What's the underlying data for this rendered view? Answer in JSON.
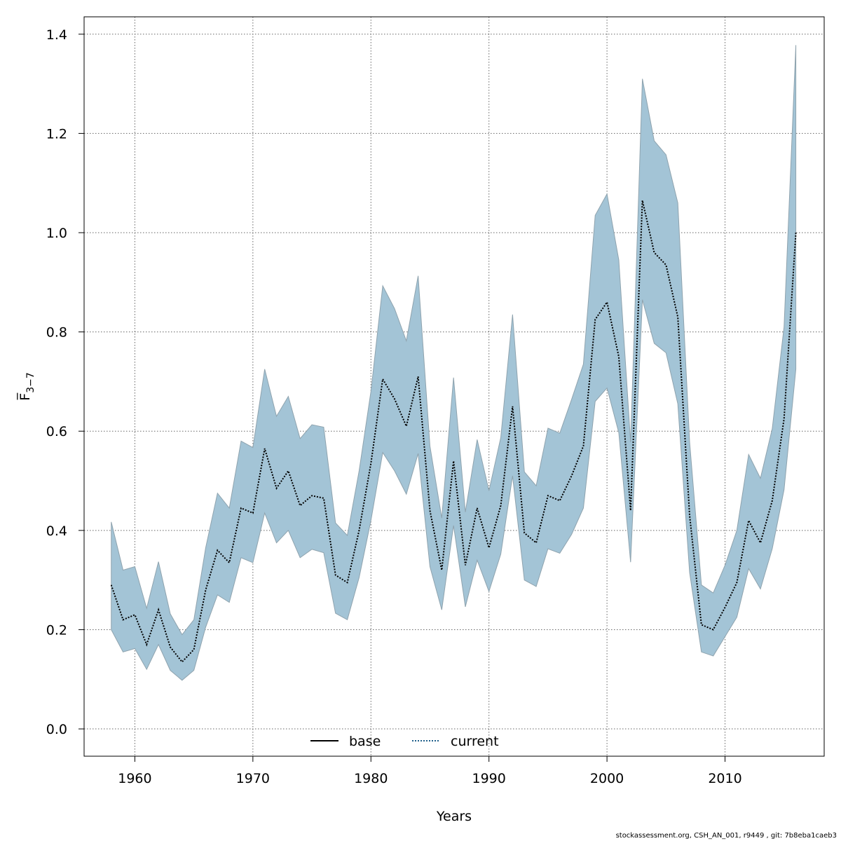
{
  "chart_data": {
    "type": "line",
    "xlabel": "Years",
    "ylabel": "F̅",
    "ylabel_subscript": "3−7",
    "xlim": [
      1955.7,
      2018.4
    ],
    "ylim": [
      -0.055,
      1.435
    ],
    "xticks": [
      1960,
      1970,
      1980,
      1990,
      2000,
      2010
    ],
    "yticks": [
      0.0,
      0.2,
      0.4,
      0.6,
      0.8,
      1.0,
      1.2,
      1.4
    ],
    "ytick_labels": [
      "0.0",
      "0.2",
      "0.4",
      "0.6",
      "0.8",
      "1.0",
      "1.2",
      "1.4"
    ],
    "grid": true,
    "legend_position": "bottom-center",
    "colors": {
      "band": "#a3c4d6",
      "band_edge": "#8fa3ae",
      "line": "#000000",
      "current": "#1f5f8b"
    },
    "x": [
      1958,
      1959,
      1960,
      1961,
      1962,
      1963,
      1964,
      1965,
      1966,
      1967,
      1968,
      1969,
      1970,
      1971,
      1972,
      1973,
      1974,
      1975,
      1976,
      1977,
      1978,
      1979,
      1980,
      1981,
      1982,
      1983,
      1984,
      1985,
      1986,
      1987,
      1988,
      1989,
      1990,
      1991,
      1992,
      1993,
      1994,
      1995,
      1996,
      1997,
      1998,
      1999,
      2000,
      2001,
      2002,
      2003,
      2004,
      2005,
      2006,
      2007,
      2008,
      2009,
      2010,
      2011,
      2012,
      2013,
      2014,
      2015,
      2016
    ],
    "series": [
      {
        "name": "base",
        "style": "solid",
        "values": [
          0.29,
          0.22,
          0.23,
          0.17,
          0.24,
          0.165,
          0.135,
          0.16,
          0.28,
          0.36,
          0.335,
          0.445,
          0.435,
          0.565,
          0.485,
          0.52,
          0.45,
          0.47,
          0.465,
          0.31,
          0.295,
          0.4,
          0.535,
          0.705,
          0.665,
          0.61,
          0.71,
          0.44,
          0.32,
          0.54,
          0.33,
          0.445,
          0.365,
          0.45,
          0.65,
          0.395,
          0.375,
          0.47,
          0.46,
          0.51,
          0.57,
          0.825,
          0.86,
          0.75,
          0.44,
          1.065,
          0.96,
          0.935,
          0.83,
          0.43,
          0.21,
          0.2,
          0.245,
          0.295,
          0.42,
          0.375,
          0.46,
          0.625,
          1.0
        ]
      },
      {
        "name": "current",
        "style": "dotted",
        "values": [
          0.29,
          0.22,
          0.23,
          0.17,
          0.24,
          0.165,
          0.135,
          0.16,
          0.28,
          0.36,
          0.335,
          0.445,
          0.435,
          0.565,
          0.485,
          0.52,
          0.45,
          0.47,
          0.465,
          0.31,
          0.295,
          0.4,
          0.535,
          0.705,
          0.665,
          0.61,
          0.71,
          0.44,
          0.32,
          0.54,
          0.33,
          0.445,
          0.365,
          0.45,
          0.65,
          0.395,
          0.375,
          0.47,
          0.46,
          0.51,
          0.57,
          0.825,
          0.86,
          0.75,
          0.44,
          1.065,
          0.96,
          0.935,
          0.83,
          0.43,
          0.21,
          0.2,
          0.245,
          0.295,
          0.42,
          0.375,
          0.46,
          0.625,
          1.0
        ]
      }
    ],
    "band_lower": [
      0.2,
      0.155,
      0.162,
      0.12,
      0.17,
      0.118,
      0.098,
      0.118,
      0.205,
      0.27,
      0.255,
      0.345,
      0.335,
      0.435,
      0.375,
      0.4,
      0.345,
      0.362,
      0.355,
      0.233,
      0.22,
      0.305,
      0.42,
      0.557,
      0.52,
      0.473,
      0.555,
      0.327,
      0.24,
      0.41,
      0.246,
      0.34,
      0.277,
      0.352,
      0.51,
      0.3,
      0.287,
      0.363,
      0.354,
      0.392,
      0.445,
      0.66,
      0.687,
      0.597,
      0.336,
      0.865,
      0.777,
      0.758,
      0.655,
      0.315,
      0.155,
      0.147,
      0.186,
      0.225,
      0.323,
      0.282,
      0.363,
      0.482,
      0.725
    ],
    "band_upper": [
      0.417,
      0.32,
      0.327,
      0.243,
      0.337,
      0.232,
      0.19,
      0.22,
      0.365,
      0.475,
      0.445,
      0.58,
      0.567,
      0.725,
      0.63,
      0.67,
      0.585,
      0.613,
      0.608,
      0.415,
      0.39,
      0.52,
      0.68,
      0.893,
      0.847,
      0.782,
      0.913,
      0.57,
      0.425,
      0.708,
      0.437,
      0.583,
      0.48,
      0.587,
      0.835,
      0.518,
      0.49,
      0.606,
      0.596,
      0.664,
      0.735,
      1.035,
      1.078,
      0.945,
      0.578,
      1.31,
      1.185,
      1.157,
      1.06,
      0.578,
      0.29,
      0.274,
      0.33,
      0.4,
      0.553,
      0.505,
      0.605,
      0.81,
      1.378
    ]
  },
  "footer": "stockassessment.org, CSH_AN_001, r9449 , git: 7b8eba1caeb3"
}
